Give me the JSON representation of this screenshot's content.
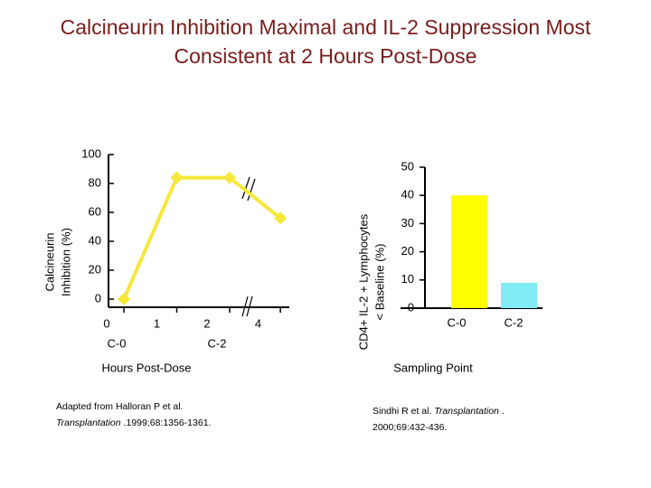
{
  "title": [
    "Calcineurin Inhibition Maximal and IL-2 Suppression Most",
    "Consistent at 2 Hours Post-Dose"
  ],
  "chart_data": [
    {
      "type": "line",
      "categories": [
        "0",
        "1",
        "2",
        "4"
      ],
      "sublabels": [
        "C-0",
        null,
        "C-2",
        null
      ],
      "values": [
        0,
        84,
        84,
        56
      ],
      "color": "#f5e83a",
      "ylim": [
        0,
        100
      ],
      "yticks": [
        0,
        20,
        40,
        60,
        80,
        100
      ],
      "ylabel": [
        "Calcineurin",
        "Inhibition (%)"
      ],
      "xlabel": "Hours Post-Dose",
      "source": [
        "Adapted from Halloran P et al.",
        "Transplantation",
        ".1999;68:1356-1361."
      ]
    },
    {
      "type": "bar",
      "categories": [
        "C-0",
        "C-2"
      ],
      "values": [
        40,
        9
      ],
      "colors": [
        "#ffff00",
        "#7fecf5"
      ],
      "ylim": [
        0,
        50
      ],
      "yticks": [
        0,
        10,
        20,
        30,
        40,
        50
      ],
      "ylabel": [
        "CD4+ IL-2 + Lymphocytes",
        "< Baseline (%)"
      ],
      "xlabel": "Sampling Point",
      "source": [
        "Sindhi R et al.",
        "Transplantation",
        ".",
        "2000;69:432-436."
      ]
    }
  ]
}
